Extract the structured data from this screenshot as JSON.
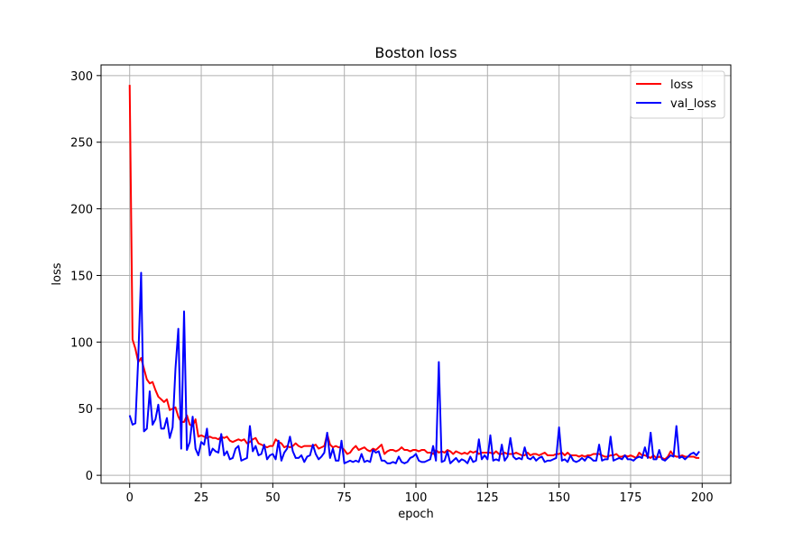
{
  "chart_data": {
    "type": "line",
    "title": "Boston loss",
    "xlabel": "epoch",
    "ylabel": "loss",
    "xlim": [
      -10,
      210
    ],
    "ylim": [
      -6,
      308
    ],
    "xticks": [
      0,
      25,
      50,
      75,
      100,
      125,
      150,
      175,
      200
    ],
    "yticks": [
      0,
      50,
      100,
      150,
      200,
      250,
      300
    ],
    "grid": true,
    "legend_position": "top-right",
    "series": [
      {
        "name": "loss",
        "color": "#ff0000",
        "x": [
          0,
          1,
          2,
          3,
          4,
          5,
          6,
          7,
          8,
          9,
          10,
          11,
          12,
          13,
          14,
          15,
          16,
          17,
          18,
          19,
          20,
          21,
          22,
          23,
          24,
          25,
          26,
          27,
          28,
          29,
          30,
          31,
          32,
          33,
          34,
          35,
          36,
          37,
          38,
          39,
          40,
          41,
          42,
          43,
          44,
          45,
          46,
          47,
          48,
          49,
          50,
          51,
          52,
          53,
          54,
          55,
          56,
          57,
          58,
          59,
          60,
          61,
          62,
          63,
          64,
          65,
          66,
          67,
          68,
          69,
          70,
          71,
          72,
          73,
          74,
          75,
          76,
          77,
          78,
          79,
          80,
          81,
          82,
          83,
          84,
          85,
          86,
          87,
          88,
          89,
          90,
          91,
          92,
          93,
          94,
          95,
          96,
          97,
          98,
          99,
          100,
          101,
          102,
          103,
          104,
          105,
          106,
          107,
          108,
          109,
          110,
          111,
          112,
          113,
          114,
          115,
          116,
          117,
          118,
          119,
          120,
          121,
          122,
          123,
          124,
          125,
          126,
          127,
          128,
          129,
          130,
          131,
          132,
          133,
          134,
          135,
          136,
          137,
          138,
          139,
          140,
          141,
          142,
          143,
          144,
          145,
          146,
          147,
          148,
          149,
          150,
          151,
          152,
          153,
          154,
          155,
          156,
          157,
          158,
          159,
          160,
          161,
          162,
          163,
          164,
          165,
          166,
          167,
          168,
          169,
          170,
          171,
          172,
          173,
          174,
          175,
          176,
          177,
          178,
          179,
          180,
          181,
          182,
          183,
          184,
          185,
          186,
          187,
          188,
          189,
          190,
          191,
          192,
          193,
          194,
          195,
          196,
          197,
          198,
          199
        ],
        "y": [
          293,
          102,
          95,
          85,
          88,
          80,
          72,
          69,
          70,
          64,
          59,
          57,
          55,
          57,
          49,
          50,
          51,
          44,
          40,
          40,
          45,
          38,
          37,
          42,
          29,
          30,
          29,
          28,
          29,
          28,
          28,
          27,
          29,
          28,
          29,
          26,
          25,
          26,
          27,
          26,
          27,
          24,
          25,
          27,
          28,
          24,
          23,
          22,
          21,
          22,
          22,
          27,
          25,
          24,
          21,
          22,
          21,
          22,
          24,
          22,
          21,
          22,
          22,
          22,
          22,
          23,
          20,
          21,
          22,
          31,
          23,
          21,
          22,
          21,
          21,
          19,
          16,
          17,
          20,
          22,
          19,
          20,
          21,
          19,
          18,
          20,
          19,
          21,
          23,
          16,
          18,
          19,
          19,
          18,
          19,
          21,
          19,
          19,
          18,
          19,
          19,
          18,
          19,
          19,
          17,
          17,
          16,
          19,
          17,
          18,
          17,
          19,
          18,
          16,
          18,
          17,
          16,
          17,
          16,
          18,
          17,
          18,
          16,
          17,
          17,
          17,
          17,
          16,
          18,
          16,
          16,
          17,
          16,
          16,
          16,
          17,
          16,
          15,
          15,
          17,
          15,
          16,
          16,
          15,
          16,
          17,
          15,
          15,
          15,
          16,
          16,
          17,
          15,
          17,
          15,
          15,
          15,
          14,
          15,
          14,
          15,
          15,
          16,
          16,
          16,
          15,
          14,
          14,
          15,
          15,
          16,
          14,
          14,
          15,
          14,
          15,
          14,
          13,
          17,
          15,
          15,
          14,
          13,
          15,
          13,
          14,
          13,
          12,
          14,
          18,
          15,
          14,
          14,
          15,
          14,
          14,
          14,
          14,
          13,
          13
        ]
      },
      {
        "name": "val_loss",
        "color": "#0000ff",
        "x": [
          0,
          1,
          2,
          3,
          4,
          5,
          6,
          7,
          8,
          9,
          10,
          11,
          12,
          13,
          14,
          15,
          16,
          17,
          18,
          19,
          20,
          21,
          22,
          23,
          24,
          25,
          26,
          27,
          28,
          29,
          30,
          31,
          32,
          33,
          34,
          35,
          36,
          37,
          38,
          39,
          40,
          41,
          42,
          43,
          44,
          45,
          46,
          47,
          48,
          49,
          50,
          51,
          52,
          53,
          54,
          55,
          56,
          57,
          58,
          59,
          60,
          61,
          62,
          63,
          64,
          65,
          66,
          67,
          68,
          69,
          70,
          71,
          72,
          73,
          74,
          75,
          76,
          77,
          78,
          79,
          80,
          81,
          82,
          83,
          84,
          85,
          86,
          87,
          88,
          89,
          90,
          91,
          92,
          93,
          94,
          95,
          96,
          97,
          98,
          99,
          100,
          101,
          102,
          103,
          104,
          105,
          106,
          107,
          108,
          109,
          110,
          111,
          112,
          113,
          114,
          115,
          116,
          117,
          118,
          119,
          120,
          121,
          122,
          123,
          124,
          125,
          126,
          127,
          128,
          129,
          130,
          131,
          132,
          133,
          134,
          135,
          136,
          137,
          138,
          139,
          140,
          141,
          142,
          143,
          144,
          145,
          146,
          147,
          148,
          149,
          150,
          151,
          152,
          153,
          154,
          155,
          156,
          157,
          158,
          159,
          160,
          161,
          162,
          163,
          164,
          165,
          166,
          167,
          168,
          169,
          170,
          171,
          172,
          173,
          174,
          175,
          176,
          177,
          178,
          179,
          180,
          181,
          182,
          183,
          184,
          185,
          186,
          187,
          188,
          189,
          190,
          191,
          192,
          193,
          194,
          195,
          196,
          197,
          198,
          199
        ],
        "y": [
          45,
          38,
          39,
          88,
          152,
          33,
          35,
          63,
          38,
          42,
          53,
          35,
          35,
          43,
          28,
          36,
          80,
          110,
          20,
          123,
          19,
          25,
          44,
          20,
          15,
          25,
          23,
          35,
          15,
          20,
          18,
          17,
          31,
          15,
          18,
          12,
          13,
          20,
          22,
          11,
          12,
          13,
          37,
          18,
          22,
          15,
          16,
          23,
          12,
          15,
          16,
          12,
          26,
          11,
          17,
          20,
          29,
          18,
          13,
          13,
          15,
          10,
          14,
          15,
          23,
          16,
          12,
          14,
          17,
          32,
          13,
          20,
          11,
          11,
          26,
          9,
          10,
          11,
          10,
          11,
          10,
          16,
          10,
          11,
          10,
          19,
          17,
          18,
          11,
          11,
          9,
          9,
          10,
          9,
          14,
          10,
          9,
          10,
          13,
          14,
          16,
          11,
          10,
          10,
          11,
          12,
          22,
          11,
          85,
          10,
          11,
          18,
          9,
          11,
          13,
          10,
          12,
          11,
          9,
          14,
          10,
          11,
          27,
          12,
          15,
          12,
          30,
          11,
          12,
          11,
          23,
          11,
          14,
          28,
          14,
          12,
          13,
          12,
          21,
          13,
          12,
          14,
          11,
          13,
          14,
          10,
          11,
          11,
          12,
          13,
          36,
          11,
          12,
          10,
          15,
          11,
          10,
          11,
          13,
          11,
          14,
          13,
          11,
          11,
          23,
          11,
          12,
          12,
          29,
          11,
          12,
          13,
          12,
          15,
          12,
          12,
          11,
          13,
          14,
          13,
          21,
          13,
          32,
          12,
          12,
          19,
          12,
          11,
          13,
          15,
          14,
          37,
          13,
          14,
          12,
          14,
          16,
          17,
          15,
          18
        ]
      }
    ]
  }
}
